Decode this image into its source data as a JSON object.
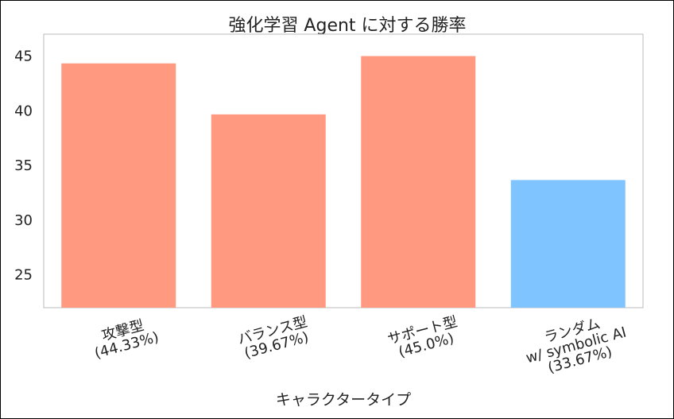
{
  "chart_data": {
    "type": "bar",
    "title": "強化学習 Agent に対する勝率",
    "xlabel": "キャラクタータイプ",
    "ylabel": "",
    "ylim": [
      22,
      47
    ],
    "yticks": [
      25,
      30,
      35,
      40,
      45
    ],
    "grid": false,
    "categories": [
      [
        "攻撃型",
        "(44.33%)"
      ],
      [
        "バランス型",
        "(39.67%)"
      ],
      [
        "サポート型",
        "(45.0%)"
      ],
      [
        "ランダム",
        "w/ symbolic AI",
        "(33.67%)"
      ]
    ],
    "values": [
      44.33,
      39.67,
      45.0,
      33.67
    ],
    "colors": [
      "#FF9980",
      "#FF9980",
      "#FF9980",
      "#80C4FF"
    ]
  }
}
